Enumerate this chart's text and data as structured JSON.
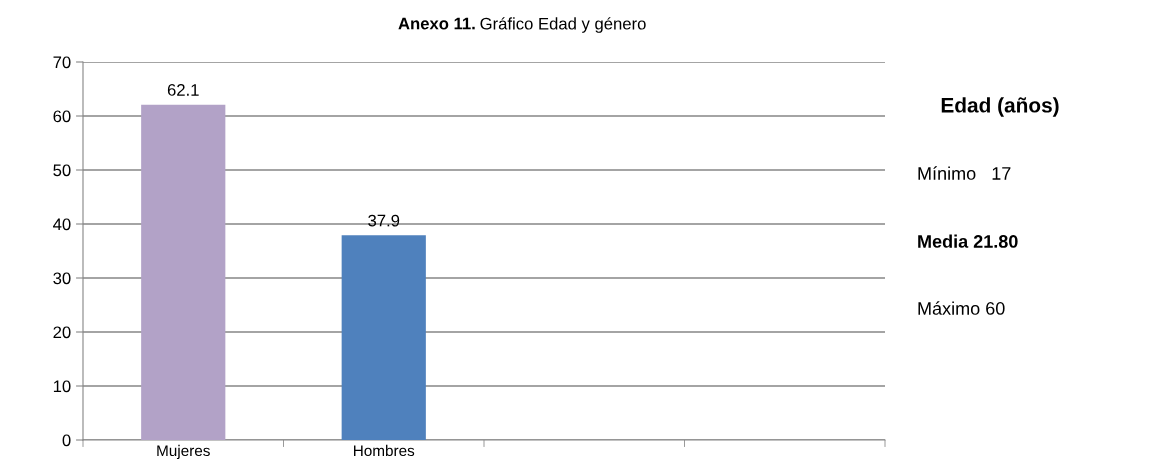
{
  "chart_data": {
    "type": "bar",
    "title": "Anexo 11. Gráfico Edad y género",
    "categories": [
      "Mujeres",
      "Hombres",
      null,
      null
    ],
    "series": [
      {
        "values": [
          62.1,
          37.9,
          null,
          null
        ],
        "colors": [
          "#b2a2c7",
          "#4f81bd",
          "#4f81bd",
          "#4f81bd"
        ]
      }
    ],
    "data_labels": true,
    "ylim": [
      0,
      70
    ],
    "yticks": [
      0,
      10,
      20,
      30,
      40,
      50,
      60,
      70
    ],
    "grid": "y",
    "annotations": [
      "Edad (años)",
      "Mínimo   17",
      "Media 21.80",
      "Máximo 60"
    ]
  }
}
